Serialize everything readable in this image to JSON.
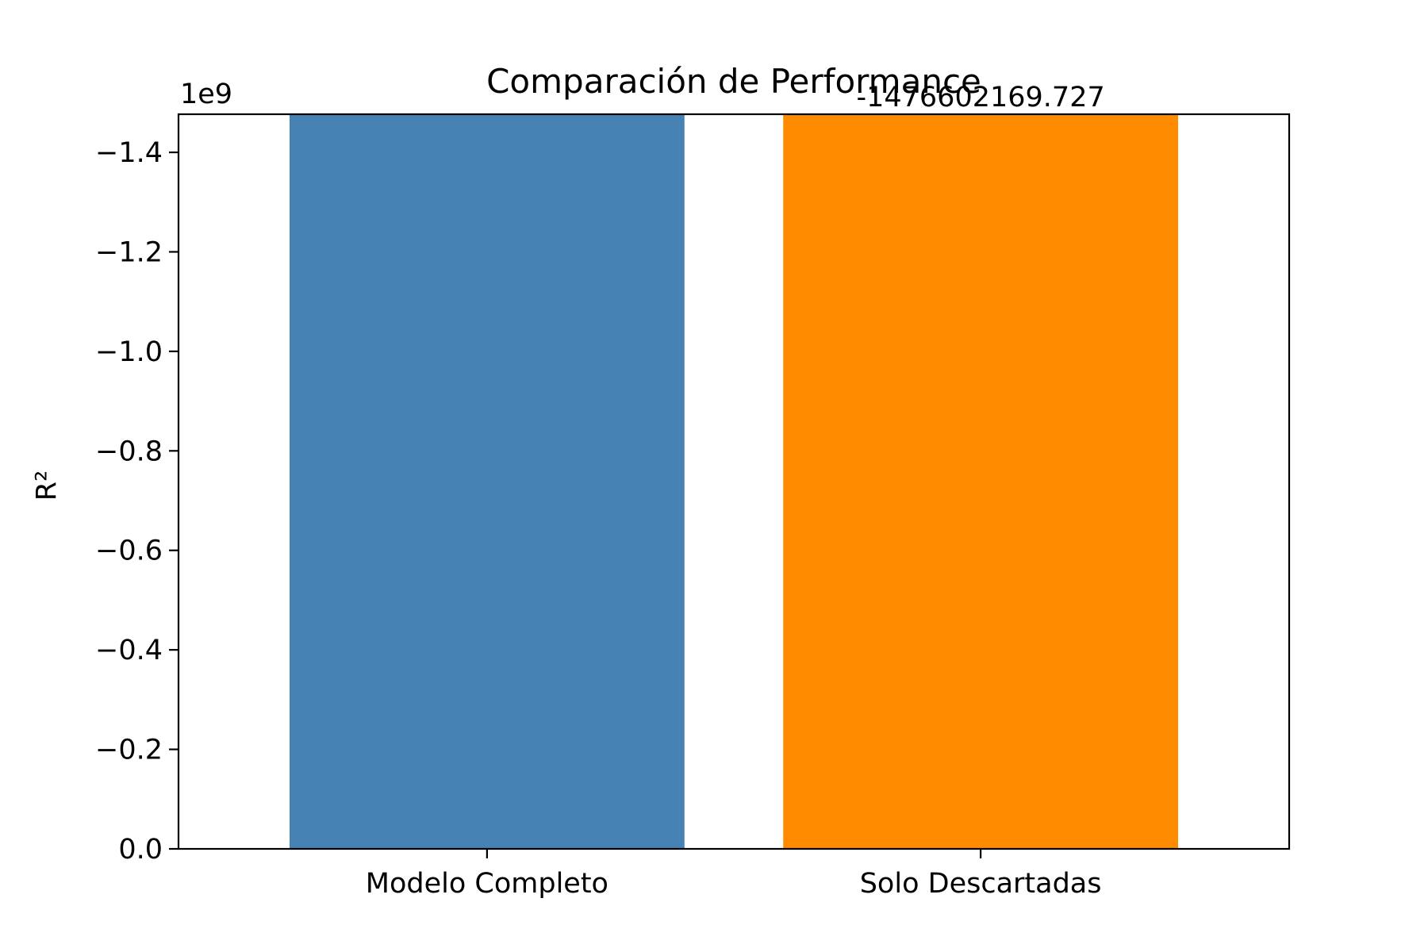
{
  "chart_data": {
    "type": "bar",
    "title": "Comparación de Performance",
    "xlabel": "",
    "ylabel": "R²",
    "offset_text": "1e9",
    "categories": [
      "Modelo Completo",
      "Solo Descartadas"
    ],
    "values": [
      -1476602169.727,
      -1476602169.727
    ],
    "bar_labels": [
      "",
      "-1476602169.727"
    ],
    "colors": [
      "#4682b4",
      "#ff8c00"
    ],
    "ylim": [
      0,
      -1476602169.727
    ],
    "y_axis_inverted": true,
    "yticks": [
      0,
      -0.2,
      -0.4,
      -0.6,
      -0.8,
      -1.0,
      -1.2,
      -1.4
    ],
    "ytick_labels": [
      "0.0",
      "−0.2",
      "−0.4",
      "−0.6",
      "−0.8",
      "−1.0",
      "−1.2",
      "−1.4"
    ],
    "ytick_scale": 1000000000,
    "grid": false,
    "legend": "none"
  }
}
